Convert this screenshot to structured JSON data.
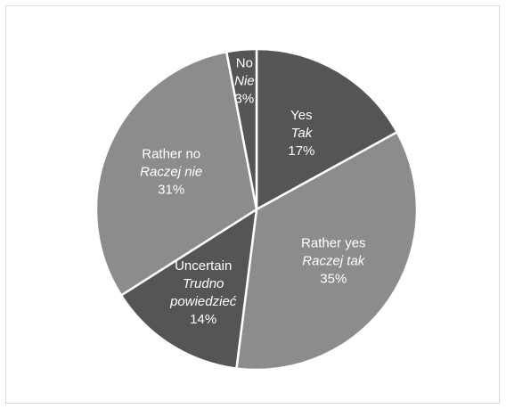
{
  "chart_data": {
    "type": "pie",
    "slices": [
      {
        "label_en": "Yes",
        "label_pl": "Tak",
        "value": 17,
        "value_label": "17%",
        "color": "#555555"
      },
      {
        "label_en": "Rather yes",
        "label_pl": "Raczej tak",
        "value": 35,
        "value_label": "35%",
        "color": "#8c8c8c"
      },
      {
        "label_en": "Uncertain",
        "label_pl": [
          "Trudno",
          "powiedzieć"
        ],
        "value": 14,
        "value_label": "14%",
        "color": "#555555"
      },
      {
        "label_en": "Rather no",
        "label_pl": "Raczej nie",
        "value": 31,
        "value_label": "31%",
        "color": "#8c8c8c"
      },
      {
        "label_en": "No",
        "label_pl": "Nie",
        "value": 3,
        "value_label": "3%",
        "color": "#555555"
      }
    ],
    "start_angle": "12 o'clock",
    "direction": "clockwise",
    "legend": "none",
    "title": ""
  }
}
